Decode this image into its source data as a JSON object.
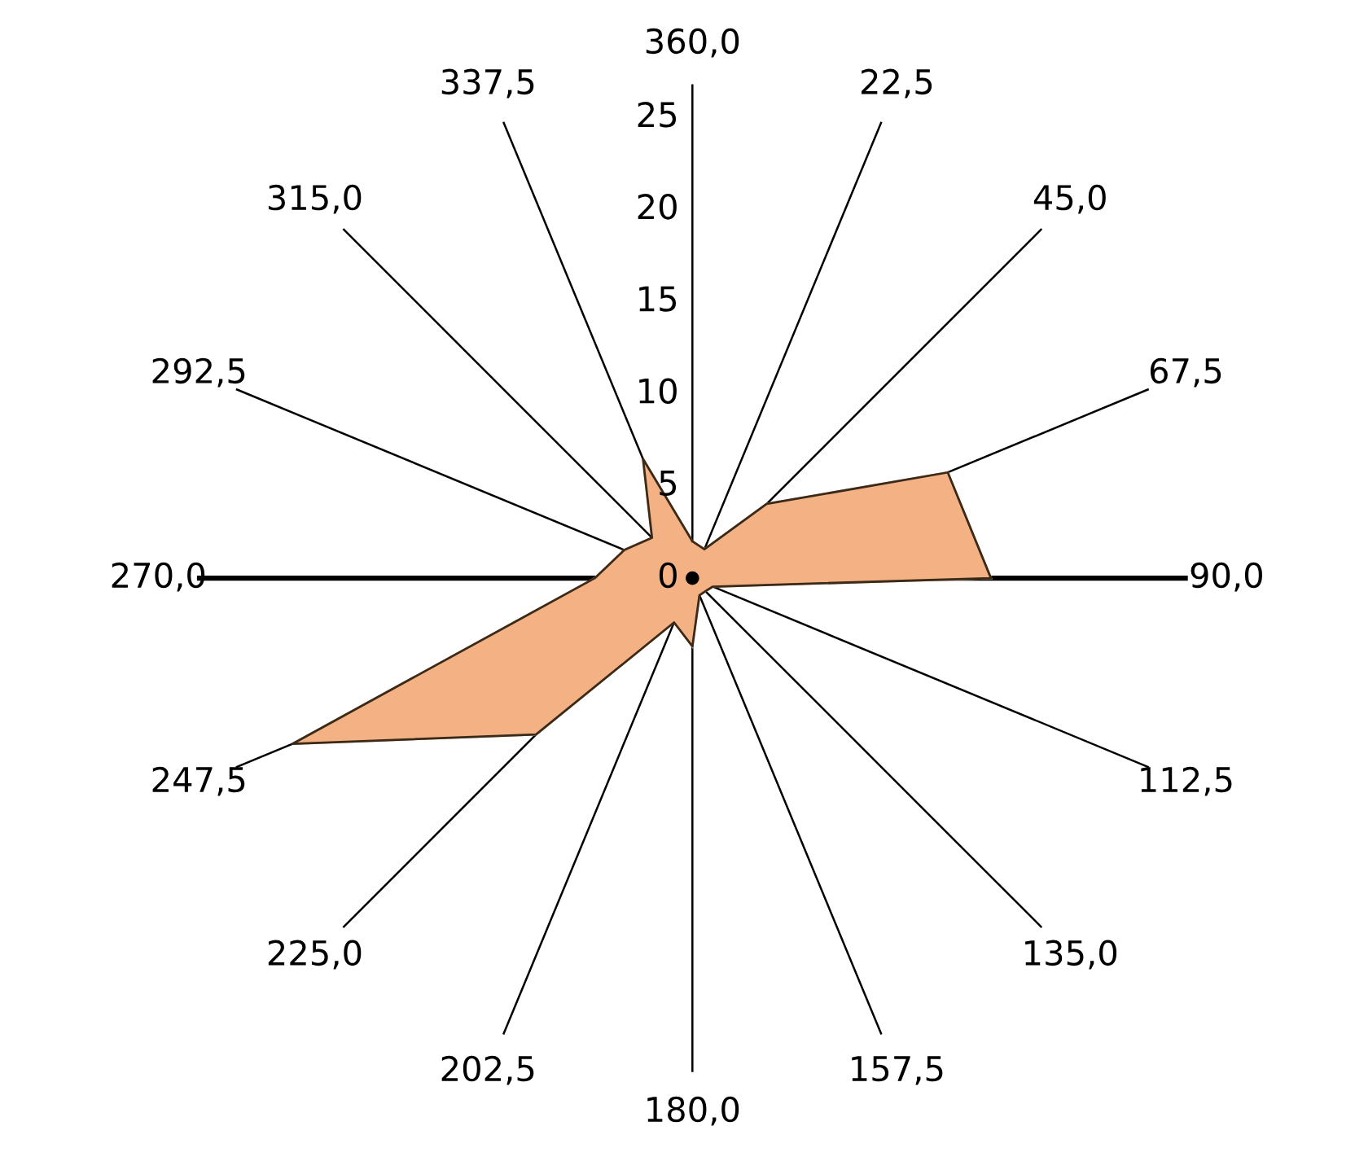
{
  "chart_data": {
    "type": "radar",
    "categories": [
      "360,0",
      "22,5",
      "45,0",
      "67,5",
      "90,0",
      "112,5",
      "135,0",
      "157,5",
      "180,0",
      "202,5",
      "225,0",
      "247,5",
      "270,0",
      "292,5",
      "315,0",
      "337,5"
    ],
    "series": [
      {
        "color": "#f4b183",
        "values": [
          2,
          1.7,
          5.7,
          15,
          16.2,
          1.2,
          1,
          1,
          3.7,
          2.6,
          12,
          23.5,
          5.3,
          4,
          3.1,
          7
        ]
      }
    ],
    "ylim": [
      0,
      25
    ],
    "yticks": [
      0,
      5,
      10,
      15,
      20,
      25
    ],
    "grid": "x",
    "legend": false
  }
}
